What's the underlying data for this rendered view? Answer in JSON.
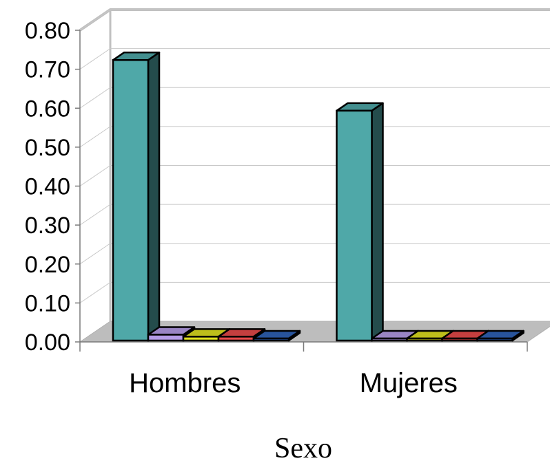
{
  "chart_data": {
    "type": "bar",
    "title": "",
    "xlabel": "Sexo",
    "ylabel": "",
    "categories": [
      "Hombres",
      "Mujeres"
    ],
    "ylim": [
      0,
      0.8
    ],
    "yticks": [
      "0.00",
      "0.10",
      "0.20",
      "0.30",
      "0.40",
      "0.50",
      "0.60",
      "0.70",
      "0.80"
    ],
    "grid": true,
    "legend": "none",
    "three_d": true,
    "series": [
      {
        "color": "#4fa8a8",
        "values": [
          0.72,
          0.59
        ]
      },
      {
        "color": "#b59ce6",
        "values": [
          0.015,
          0.0
        ]
      },
      {
        "color": "#e0e020",
        "values": [
          0.01,
          0.0
        ]
      },
      {
        "color": "#e64a4a",
        "values": [
          0.01,
          0.0
        ]
      },
      {
        "color": "#2f63b8",
        "values": [
          0.0,
          0.0
        ]
      }
    ]
  }
}
